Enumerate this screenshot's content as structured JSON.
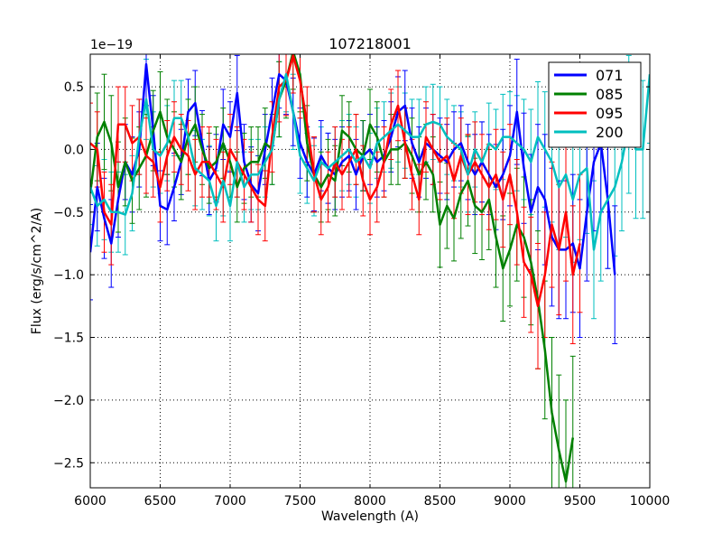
{
  "chart_data": {
    "type": "line",
    "title": "107218001",
    "xlabel": "Wavelength (A)",
    "ylabel": "Flux (erg/s/cm^2/A)",
    "offset_text": "1e−19",
    "xlim": [
      6000,
      10000
    ],
    "ylim": [
      -2.7,
      0.76
    ],
    "grid": true,
    "legend_position": "top-right",
    "x_ticks": [
      6000,
      6500,
      7000,
      7500,
      8000,
      8500,
      9000,
      9500,
      10000
    ],
    "x_tick_labels": [
      "6000",
      "6500",
      "7000",
      "7500",
      "8000",
      "8500",
      "9000",
      "9500",
      "10000"
    ],
    "y_ticks": [
      0.5,
      0.0,
      -0.5,
      -1.0,
      -1.5,
      -2.0,
      -2.5
    ],
    "y_tick_labels": [
      "0.5",
      "0.0",
      "−0.5",
      "−1.0",
      "−1.5",
      "−2.0",
      "−2.5"
    ],
    "series": [
      {
        "name": "071",
        "color": "#0000ff",
        "x": [
          6000,
          6050,
          6100,
          6150,
          6200,
          6250,
          6300,
          6350,
          6400,
          6450,
          6500,
          6550,
          6600,
          6650,
          6700,
          6750,
          6800,
          6850,
          6900,
          6950,
          7000,
          7050,
          7100,
          7150,
          7200,
          7250,
          7300,
          7350,
          7400,
          7450,
          7500,
          7550,
          7600,
          7650,
          7700,
          7750,
          7800,
          7850,
          7900,
          7950,
          8000,
          8050,
          8100,
          8150,
          8200,
          8250,
          8300,
          8350,
          8400,
          8450,
          8500,
          8550,
          8600,
          8650,
          8700,
          8750,
          8800,
          8850,
          8900,
          8950,
          9000,
          9050,
          9100,
          9150,
          9200,
          9250,
          9300,
          9350,
          9400,
          9450,
          9500,
          9550,
          9600,
          9650,
          9700,
          9750
        ],
        "y": [
          -0.82,
          -0.3,
          -0.55,
          -0.75,
          -0.4,
          -0.1,
          -0.2,
          0.0,
          0.68,
          0.15,
          -0.45,
          -0.48,
          -0.3,
          -0.1,
          0.3,
          0.37,
          0.05,
          -0.25,
          -0.15,
          0.2,
          0.1,
          0.45,
          -0.1,
          -0.28,
          -0.35,
          0.0,
          0.3,
          0.6,
          0.55,
          0.3,
          0.05,
          -0.1,
          -0.2,
          -0.05,
          -0.15,
          -0.2,
          -0.1,
          -0.05,
          -0.2,
          -0.05,
          0.0,
          -0.1,
          -0.05,
          0.1,
          0.3,
          0.35,
          0.05,
          -0.1,
          0.05,
          0.0,
          -0.05,
          -0.1,
          0.0,
          0.05,
          -0.1,
          -0.2,
          -0.1,
          -0.2,
          -0.3,
          -0.2,
          -0.05,
          0.3,
          -0.15,
          -0.5,
          -0.3,
          -0.4,
          -0.7,
          -0.8,
          -0.8,
          -0.75,
          -0.95,
          -0.5,
          -0.1,
          0.05,
          -0.4,
          -1.0
        ],
        "err": [
          0.38,
          0.35,
          0.32,
          0.35,
          0.3,
          0.3,
          0.3,
          0.3,
          0.33,
          0.28,
          0.28,
          0.28,
          0.27,
          0.26,
          0.26,
          0.26,
          0.26,
          0.27,
          0.27,
          0.28,
          0.28,
          0.3,
          0.3,
          0.3,
          0.3,
          0.28,
          0.27,
          0.27,
          0.27,
          0.27,
          0.28,
          0.28,
          0.29,
          0.28,
          0.28,
          0.28,
          0.28,
          0.28,
          0.28,
          0.28,
          0.28,
          0.28,
          0.28,
          0.28,
          0.28,
          0.28,
          0.28,
          0.28,
          0.28,
          0.28,
          0.3,
          0.3,
          0.3,
          0.3,
          0.3,
          0.32,
          0.32,
          0.32,
          0.34,
          0.36,
          0.4,
          0.42,
          0.44,
          0.46,
          0.5,
          0.52,
          0.55,
          0.55,
          0.55,
          0.55,
          0.55,
          0.55,
          0.55,
          0.55,
          0.55,
          0.55
        ]
      },
      {
        "name": "085",
        "color": "#008000",
        "x": [
          6000,
          6050,
          6100,
          6150,
          6200,
          6250,
          6300,
          6350,
          6400,
          6450,
          6500,
          6550,
          6600,
          6650,
          6700,
          6750,
          6800,
          6850,
          6900,
          6950,
          7000,
          7050,
          7100,
          7150,
          7200,
          7250,
          7300,
          7350,
          7400,
          7450,
          7500,
          7550,
          7600,
          7650,
          7700,
          7750,
          7800,
          7850,
          7900,
          7950,
          8000,
          8050,
          8100,
          8150,
          8200,
          8250,
          8300,
          8350,
          8400,
          8450,
          8500,
          8550,
          8600,
          8650,
          8700,
          8750,
          8800,
          8850,
          8900,
          8950,
          9000,
          9050,
          9100,
          9150,
          9200,
          9250,
          9300,
          9350,
          9400,
          9450
        ],
        "y": [
          -0.35,
          0.1,
          0.22,
          0.05,
          -0.3,
          -0.1,
          -0.25,
          -0.15,
          -0.05,
          0.15,
          0.3,
          0.1,
          0.0,
          -0.1,
          0.1,
          0.2,
          0.0,
          -0.15,
          -0.1,
          0.05,
          -0.1,
          -0.3,
          -0.15,
          -0.1,
          -0.1,
          0.05,
          0.0,
          0.4,
          0.55,
          0.78,
          0.6,
          0.05,
          -0.2,
          -0.3,
          -0.2,
          -0.25,
          0.15,
          0.1,
          0.0,
          -0.05,
          0.2,
          0.1,
          -0.1,
          0.0,
          0.0,
          0.05,
          -0.05,
          -0.2,
          -0.1,
          -0.2,
          -0.6,
          -0.45,
          -0.55,
          -0.35,
          -0.25,
          -0.45,
          -0.5,
          -0.4,
          -0.7,
          -0.95,
          -0.8,
          -0.6,
          -0.7,
          -0.9,
          -1.2,
          -1.6,
          -2.1,
          -2.4,
          -2.65,
          -2.3
        ],
        "err": [
          0.35,
          0.35,
          0.38,
          0.38,
          0.36,
          0.35,
          0.34,
          0.33,
          0.33,
          0.32,
          0.32,
          0.3,
          0.3,
          0.3,
          0.3,
          0.3,
          0.28,
          0.28,
          0.28,
          0.28,
          0.28,
          0.28,
          0.28,
          0.28,
          0.28,
          0.28,
          0.28,
          0.3,
          0.3,
          0.3,
          0.3,
          0.3,
          0.3,
          0.28,
          0.28,
          0.28,
          0.28,
          0.28,
          0.28,
          0.28,
          0.28,
          0.28,
          0.28,
          0.28,
          0.28,
          0.28,
          0.3,
          0.3,
          0.3,
          0.3,
          0.34,
          0.34,
          0.34,
          0.36,
          0.36,
          0.38,
          0.38,
          0.4,
          0.4,
          0.42,
          0.45,
          0.45,
          0.48,
          0.5,
          0.55,
          0.55,
          0.6,
          0.6,
          0.65,
          0.65
        ]
      },
      {
        "name": "095",
        "color": "#ff0000",
        "x": [
          6000,
          6050,
          6100,
          6150,
          6200,
          6250,
          6300,
          6350,
          6400,
          6450,
          6500,
          6550,
          6600,
          6650,
          6700,
          6750,
          6800,
          6850,
          6900,
          6950,
          7000,
          7050,
          7100,
          7150,
          7200,
          7250,
          7300,
          7350,
          7400,
          7450,
          7500,
          7550,
          7600,
          7650,
          7700,
          7750,
          7800,
          7850,
          7900,
          7950,
          8000,
          8050,
          8100,
          8150,
          8200,
          8250,
          8300,
          8350,
          8400,
          8450,
          8500,
          8550,
          8600,
          8650,
          8700,
          8750,
          8800,
          8850,
          8900,
          8950,
          9000,
          9050,
          9100,
          9150,
          9200,
          9250,
          9300,
          9350,
          9400,
          9450,
          9500
        ],
        "y": [
          0.05,
          0.0,
          -0.5,
          -0.6,
          0.2,
          0.2,
          0.05,
          0.1,
          -0.05,
          -0.1,
          -0.3,
          -0.05,
          0.1,
          0.0,
          -0.05,
          -0.2,
          -0.1,
          -0.1,
          -0.2,
          -0.3,
          0.0,
          -0.1,
          -0.2,
          -0.3,
          -0.4,
          -0.45,
          0.1,
          0.5,
          0.55,
          0.75,
          0.55,
          0.2,
          -0.2,
          -0.4,
          -0.3,
          -0.1,
          -0.2,
          -0.1,
          0.0,
          -0.25,
          -0.4,
          -0.3,
          -0.1,
          0.2,
          0.35,
          0.05,
          -0.2,
          -0.4,
          0.1,
          0.0,
          -0.1,
          -0.05,
          -0.25,
          -0.05,
          -0.2,
          -0.1,
          -0.2,
          -0.3,
          -0.2,
          -0.4,
          -0.2,
          -0.5,
          -0.9,
          -1.0,
          -1.25,
          -1.0,
          -0.6,
          -0.8,
          -0.5,
          -1.0,
          -0.75
        ],
        "err": [
          0.32,
          0.3,
          0.32,
          0.32,
          0.3,
          0.3,
          0.3,
          0.3,
          0.3,
          0.28,
          0.28,
          0.28,
          0.28,
          0.28,
          0.28,
          0.28,
          0.28,
          0.28,
          0.28,
          0.28,
          0.28,
          0.28,
          0.28,
          0.28,
          0.28,
          0.28,
          0.28,
          0.28,
          0.28,
          0.3,
          0.3,
          0.3,
          0.3,
          0.28,
          0.28,
          0.28,
          0.28,
          0.28,
          0.28,
          0.28,
          0.28,
          0.28,
          0.28,
          0.28,
          0.28,
          0.28,
          0.28,
          0.28,
          0.28,
          0.28,
          0.3,
          0.3,
          0.3,
          0.3,
          0.32,
          0.32,
          0.32,
          0.34,
          0.36,
          0.38,
          0.4,
          0.42,
          0.44,
          0.46,
          0.5,
          0.5,
          0.5,
          0.52,
          0.55,
          0.55,
          0.55
        ]
      },
      {
        "name": "200",
        "color": "#00bfbf",
        "x": [
          6000,
          6050,
          6100,
          6150,
          6200,
          6250,
          6300,
          6350,
          6400,
          6450,
          6500,
          6550,
          6600,
          6650,
          6700,
          6750,
          6800,
          6850,
          6900,
          6950,
          7000,
          7050,
          7100,
          7150,
          7200,
          7250,
          7300,
          7350,
          7400,
          7450,
          7500,
          7550,
          7600,
          7650,
          7700,
          7750,
          7800,
          7850,
          7900,
          7950,
          8000,
          8050,
          8100,
          8150,
          8200,
          8250,
          8300,
          8350,
          8400,
          8450,
          8500,
          8550,
          8600,
          8650,
          8700,
          8750,
          8800,
          8850,
          8900,
          8950,
          9000,
          9050,
          9100,
          9150,
          9200,
          9250,
          9300,
          9350,
          9400,
          9450,
          9500,
          9550,
          9600,
          9650,
          9700,
          9750,
          9800,
          9850,
          9900,
          9950,
          10000
        ],
        "y": [
          -0.3,
          -0.45,
          -0.4,
          -0.5,
          -0.5,
          -0.52,
          -0.35,
          0.1,
          0.4,
          0.0,
          -0.05,
          0.05,
          0.25,
          0.25,
          0.1,
          -0.15,
          -0.2,
          -0.25,
          -0.45,
          -0.25,
          -0.45,
          -0.1,
          -0.3,
          -0.2,
          -0.2,
          -0.1,
          0.0,
          0.4,
          0.6,
          0.3,
          -0.05,
          -0.15,
          -0.25,
          -0.1,
          -0.15,
          -0.1,
          -0.05,
          0.0,
          -0.1,
          -0.05,
          -0.15,
          0.05,
          0.1,
          0.15,
          0.2,
          0.15,
          0.1,
          0.1,
          0.2,
          0.22,
          0.2,
          0.1,
          0.05,
          0.0,
          -0.2,
          0.0,
          -0.1,
          0.05,
          0.0,
          0.1,
          0.1,
          0.05,
          0.0,
          -0.1,
          0.1,
          0.0,
          -0.1,
          -0.3,
          -0.2,
          -0.4,
          -0.2,
          -0.15,
          -0.8,
          -0.5,
          -0.4,
          -0.3,
          -0.1,
          0.2,
          0.0,
          0.0,
          0.6
        ],
        "err": [
          0.3,
          0.32,
          0.32,
          0.32,
          0.32,
          0.32,
          0.3,
          0.3,
          0.32,
          0.3,
          0.3,
          0.3,
          0.3,
          0.3,
          0.3,
          0.3,
          0.28,
          0.28,
          0.28,
          0.28,
          0.28,
          0.28,
          0.28,
          0.28,
          0.28,
          0.28,
          0.28,
          0.3,
          0.3,
          0.3,
          0.3,
          0.28,
          0.28,
          0.28,
          0.28,
          0.28,
          0.28,
          0.28,
          0.28,
          0.28,
          0.28,
          0.28,
          0.28,
          0.3,
          0.3,
          0.3,
          0.3,
          0.3,
          0.3,
          0.3,
          0.3,
          0.3,
          0.3,
          0.3,
          0.3,
          0.3,
          0.32,
          0.32,
          0.32,
          0.34,
          0.36,
          0.38,
          0.4,
          0.42,
          0.44,
          0.46,
          0.48,
          0.5,
          0.5,
          0.5,
          0.52,
          0.52,
          0.55,
          0.55,
          0.55,
          0.55,
          0.55,
          0.55,
          0.55,
          0.55,
          0.55
        ]
      }
    ]
  }
}
